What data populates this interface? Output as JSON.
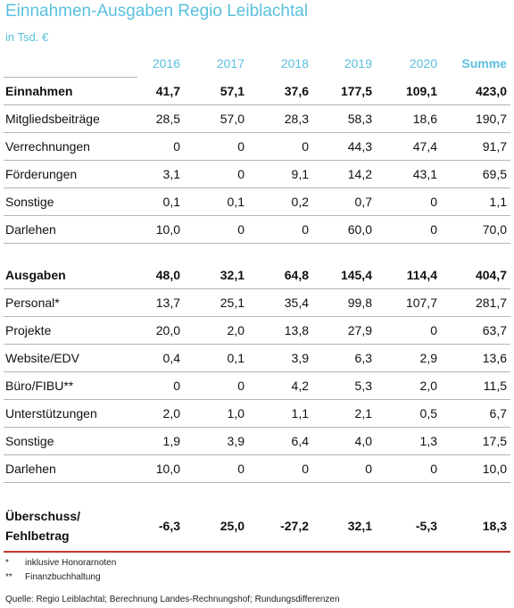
{
  "title": "Einnahmen-Ausgaben Regio Leiblachtal",
  "subtitle": "in Tsd. €",
  "columns": [
    "2016",
    "2017",
    "2018",
    "2019",
    "2020",
    "Summe"
  ],
  "einnahmen": {
    "total": {
      "label": "Einnahmen",
      "values": [
        "41,7",
        "57,1",
        "37,6",
        "177,5",
        "109,1",
        "423,0"
      ]
    },
    "rows": [
      {
        "label": "Mitgliedsbeiträge",
        "values": [
          "28,5",
          "57,0",
          "28,3",
          "58,3",
          "18,6",
          "190,7"
        ]
      },
      {
        "label": "Verrechnungen",
        "values": [
          "0",
          "0",
          "0",
          "44,3",
          "47,4",
          "91,7"
        ]
      },
      {
        "label": "Förderungen",
        "values": [
          "3,1",
          "0",
          "9,1",
          "14,2",
          "43,1",
          "69,5"
        ]
      },
      {
        "label": "Sonstige",
        "values": [
          "0,1",
          "0,1",
          "0,2",
          "0,7",
          "0",
          "1,1"
        ]
      },
      {
        "label": "Darlehen",
        "values": [
          "10,0",
          "0",
          "0",
          "60,0",
          "0",
          "70,0"
        ]
      }
    ]
  },
  "ausgaben": {
    "total": {
      "label": "Ausgaben",
      "values": [
        "48,0",
        "32,1",
        "64,8",
        "145,4",
        "114,4",
        "404,7"
      ]
    },
    "rows": [
      {
        "label": "Personal*",
        "values": [
          "13,7",
          "25,1",
          "35,4",
          "99,8",
          "107,7",
          "281,7"
        ]
      },
      {
        "label": "Projekte",
        "values": [
          "20,0",
          "2,0",
          "13,8",
          "27,9",
          "0",
          "63,7"
        ]
      },
      {
        "label": "Website/EDV",
        "values": [
          "0,4",
          "0,1",
          "3,9",
          "6,3",
          "2,9",
          "13,6"
        ]
      },
      {
        "label": "Büro/FIBU**",
        "values": [
          "0",
          "0",
          "4,2",
          "5,3",
          "2,0",
          "11,5"
        ]
      },
      {
        "label": "Unterstützungen",
        "values": [
          "2,0",
          "1,0",
          "1,1",
          "2,1",
          "0,5",
          "6,7"
        ]
      },
      {
        "label": "Sonstige",
        "values": [
          "1,9",
          "3,9",
          "6,4",
          "4,0",
          "1,3",
          "17,5"
        ]
      },
      {
        "label": "Darlehen",
        "values": [
          "10,0",
          "0",
          "0",
          "0",
          "0",
          "10,0"
        ]
      }
    ]
  },
  "result": {
    "label_line1": "Überschuss/",
    "label_line2": "Fehlbetrag",
    "values": [
      "-6,3",
      "25,0",
      "-27,2",
      "32,1",
      "-5,3",
      "18,3"
    ]
  },
  "footnotes": [
    {
      "mark": "*",
      "text": "inklusive Honorarnoten"
    },
    {
      "mark": "**",
      "text": "Finanzbuchhaltung"
    }
  ],
  "source": "Quelle: Regio Leiblachtal; Berechnung Landes-Rechnungshof; Rundungsdifferenzen"
}
